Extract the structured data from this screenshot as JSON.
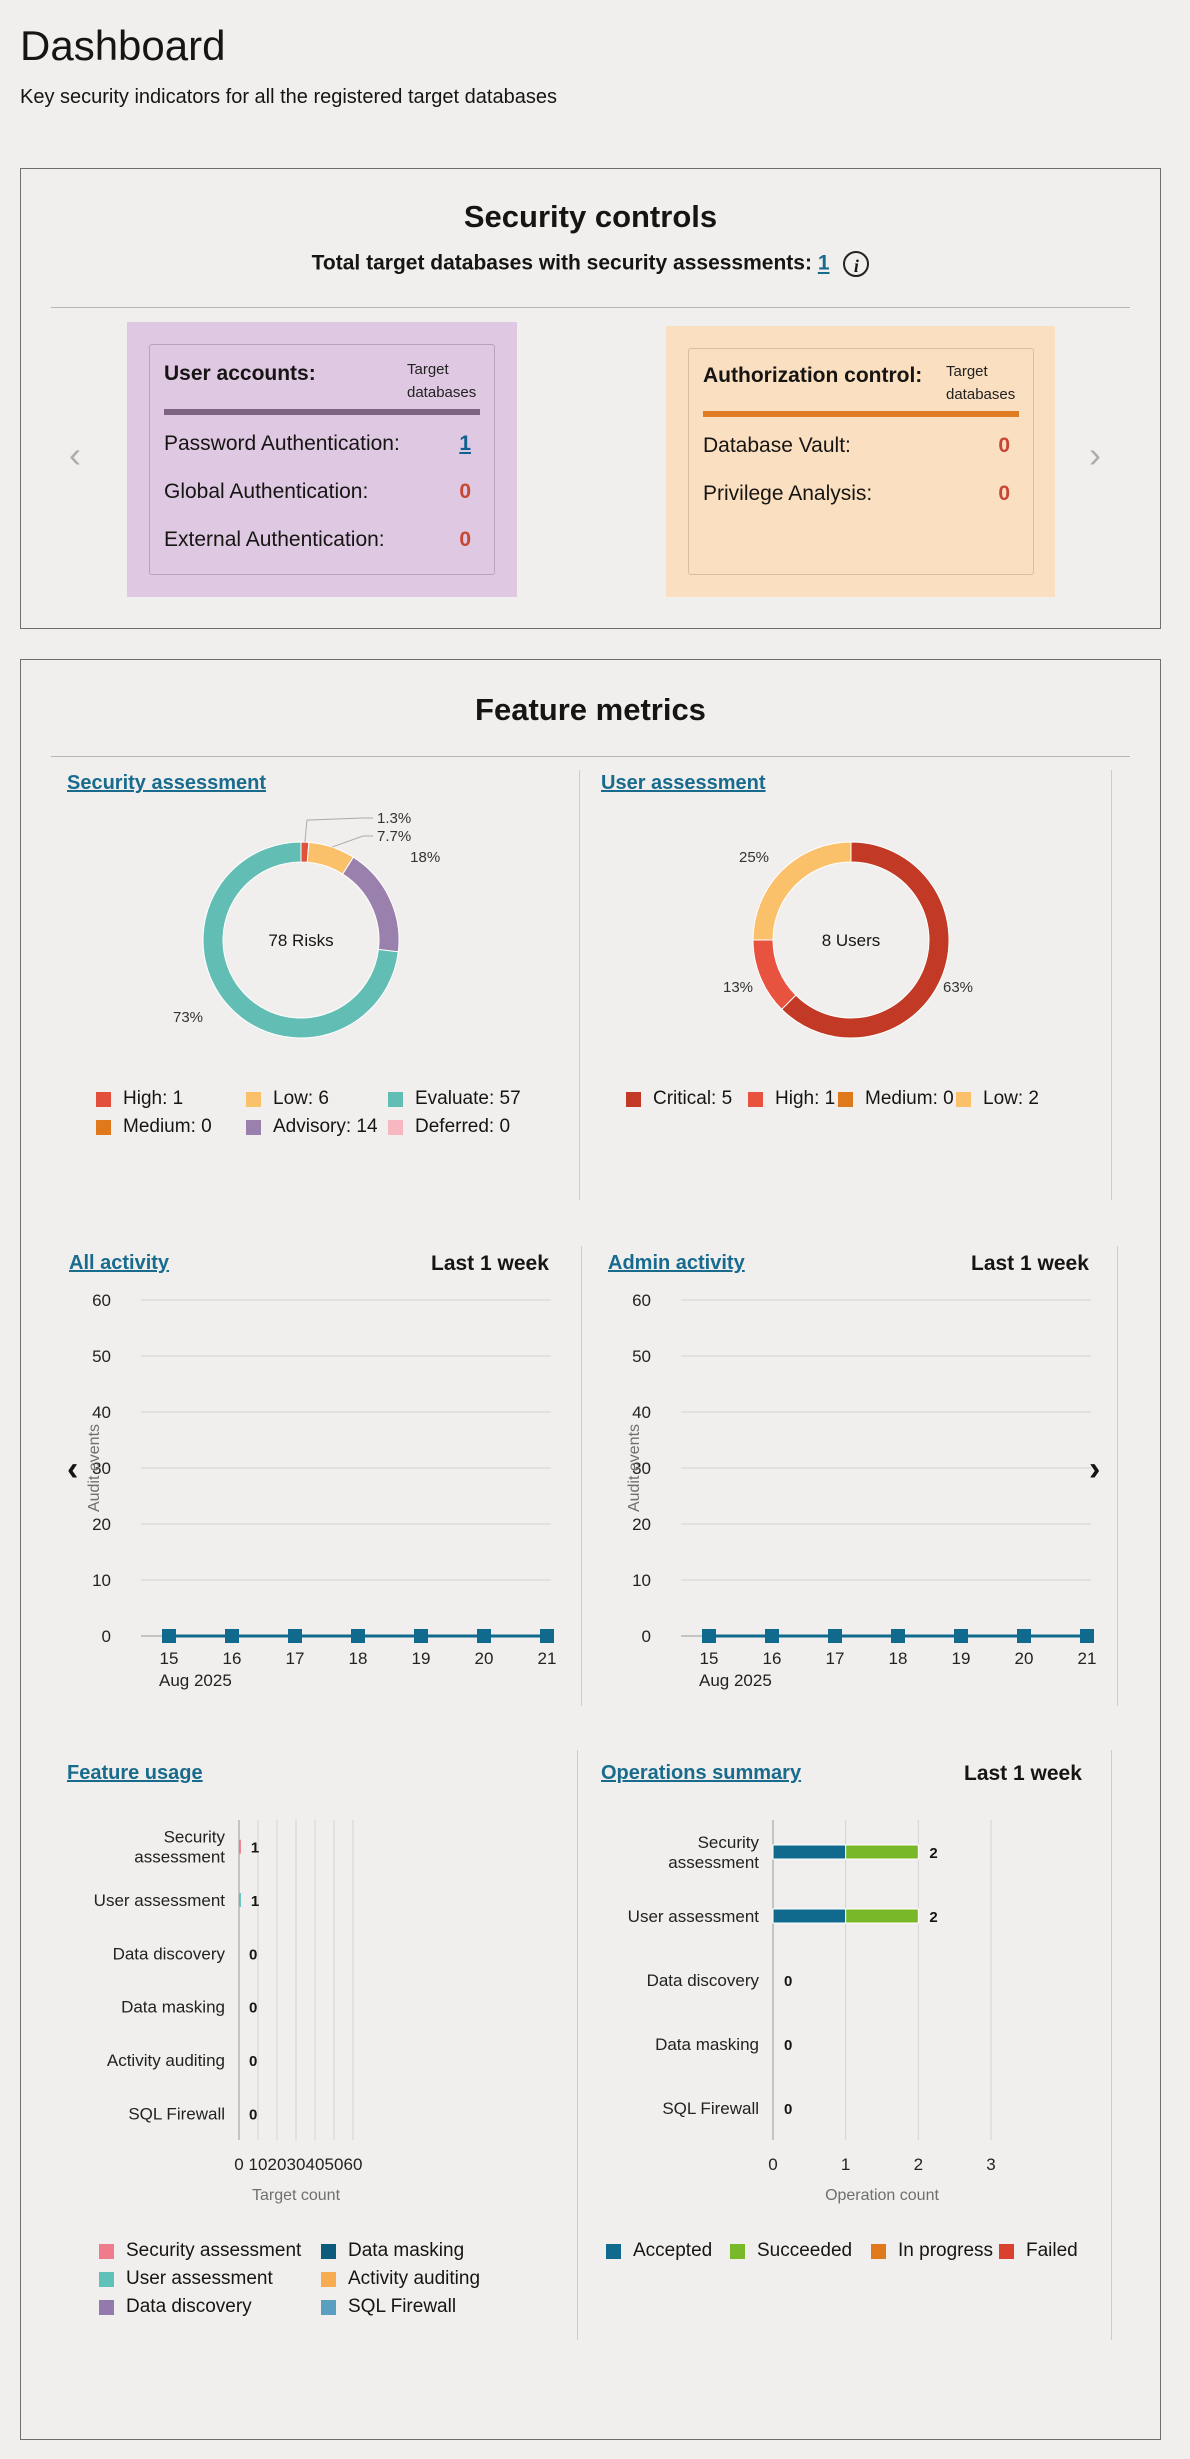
{
  "page": {
    "title": "Dashboard",
    "subtitle": "Key security indicators for all the registered target databases"
  },
  "security_controls": {
    "title": "Security controls",
    "total_label": "Total target databases with security assessments:",
    "total_value": "1",
    "info_icon": "info-icon",
    "prev_arrow": "‹",
    "next_arrow": "›",
    "cards": [
      {
        "title": "User accounts:",
        "column_header_1": "Target",
        "column_header_2": "databases",
        "bg_color": "#dfc8e2",
        "bar_color": "#7d6483",
        "rows": [
          {
            "label": "Password Authentication:",
            "value": "1"
          },
          {
            "label": "Global Authentication:",
            "value": "0"
          },
          {
            "label": "External Authentication:",
            "value": "0"
          }
        ]
      },
      {
        "title": "Authorization control:",
        "column_header_1": "Target",
        "column_header_2": "databases",
        "bg_color": "#fadfc0",
        "bar_color": "#e07d23",
        "rows": [
          {
            "label": "Database Vault:",
            "value": "0"
          },
          {
            "label": "Privilege Analysis:",
            "value": "0"
          }
        ]
      }
    ]
  },
  "feature_metrics": {
    "title": "Feature metrics",
    "security_assessment": {
      "link": "Security assessment",
      "center_label": "78 Risks",
      "slice_labels": [
        "1.3%",
        "7.7%",
        "18%",
        "73%"
      ],
      "legend": [
        {
          "label": "High: 1",
          "color": "#e24f3d"
        },
        {
          "label": "Low: 6",
          "color": "#fbc06a"
        },
        {
          "label": "Evaluate: 57",
          "color": "#62bdb5"
        },
        {
          "label": "Medium: 0",
          "color": "#e0781c"
        },
        {
          "label": "Advisory: 14",
          "color": "#9a80ad"
        },
        {
          "label": "Deferred: 0",
          "color": "#f6b7c1"
        }
      ]
    },
    "user_assessment": {
      "link": "User assessment",
      "center_label": "8 Users",
      "slice_labels": [
        "63%",
        "13%",
        "25%"
      ],
      "legend": [
        {
          "label": "Critical: 5",
          "color": "#c23a25"
        },
        {
          "label": "High: 1",
          "color": "#e8533f"
        },
        {
          "label": "Medium: 0",
          "color": "#e0781c"
        },
        {
          "label": "Low: 2",
          "color": "#fbc06a"
        }
      ]
    },
    "all_activity": {
      "link": "All activity",
      "period": "Last 1 week",
      "prev_arrow": "‹"
    },
    "admin_activity": {
      "link": "Admin activity",
      "period": "Last 1 week",
      "next_arrow": "›"
    },
    "feature_usage": {
      "link": "Feature usage",
      "legend": [
        {
          "label": "Security assessment",
          "color": "#ef7c8c"
        },
        {
          "label": "Data masking",
          "color": "#0d5b7c"
        },
        {
          "label": "User assessment",
          "color": "#5ec2b8"
        },
        {
          "label": "Activity auditing",
          "color": "#f7ac52"
        },
        {
          "label": "Data discovery",
          "color": "#937aad"
        },
        {
          "label": "SQL Firewall",
          "color": "#5a9ec0"
        }
      ]
    },
    "operations_summary": {
      "link": "Operations summary",
      "period": "Last 1 week",
      "legend": [
        {
          "label": "Accepted",
          "color": "#0f6a8e"
        },
        {
          "label": "Succeeded",
          "color": "#78b829"
        },
        {
          "label": "In progress",
          "color": "#e0781c"
        },
        {
          "label": "Failed",
          "color": "#d9402f"
        }
      ]
    }
  },
  "chart_data": [
    {
      "type": "pie",
      "name": "Security assessment",
      "categories": [
        "High",
        "Medium",
        "Low",
        "Advisory",
        "Evaluate",
        "Deferred"
      ],
      "values": [
        1,
        0,
        6,
        14,
        57,
        0
      ],
      "colors": [
        "#e24f3d",
        "#e0781c",
        "#fbc06a",
        "#9a80ad",
        "#62bdb5",
        "#f6b7c1"
      ],
      "donut": true
    },
    {
      "type": "pie",
      "name": "User assessment",
      "categories": [
        "Critical",
        "High",
        "Medium",
        "Low"
      ],
      "values": [
        5,
        1,
        0,
        2
      ],
      "colors": [
        "#c23a25",
        "#e8533f",
        "#e0781c",
        "#fbc06a"
      ],
      "donut": true
    },
    {
      "type": "line",
      "name": "All activity",
      "x": [
        "15",
        "16",
        "17",
        "18",
        "19",
        "20",
        "21"
      ],
      "x_sublabel": "Aug 2025",
      "values": [
        0,
        0,
        0,
        0,
        0,
        0,
        0
      ],
      "ylabel": "Audit events",
      "ylim": [
        0,
        60
      ],
      "yticks": [
        0,
        10,
        20,
        30,
        40,
        50,
        60
      ],
      "color": "#0f6a8e"
    },
    {
      "type": "line",
      "name": "Admin activity",
      "x": [
        "15",
        "16",
        "17",
        "18",
        "19",
        "20",
        "21"
      ],
      "x_sublabel": "Aug 2025",
      "values": [
        0,
        0,
        0,
        0,
        0,
        0,
        0
      ],
      "ylabel": "Audit events",
      "ylim": [
        0,
        60
      ],
      "yticks": [
        0,
        10,
        20,
        30,
        40,
        50,
        60
      ],
      "color": "#0f6a8e"
    },
    {
      "type": "bar",
      "orientation": "horizontal",
      "name": "Feature usage",
      "categories": [
        [
          "Security",
          "assessment"
        ],
        [
          "User assessment"
        ],
        [
          "Data discovery"
        ],
        [
          "Data masking"
        ],
        [
          "Activity auditing"
        ],
        [
          "SQL Firewall"
        ]
      ],
      "values": [
        1,
        1,
        0,
        0,
        0,
        0
      ],
      "colors": [
        "#ef7c8c",
        "#5ec2b8",
        "#937aad",
        "#0d5b7c",
        "#f7ac52",
        "#5a9ec0"
      ],
      "xlabel": "Target count",
      "xlim": [
        0,
        60
      ],
      "xticks": [
        0,
        10,
        20,
        30,
        40,
        50,
        60
      ]
    },
    {
      "type": "bar",
      "orientation": "horizontal",
      "stacked": true,
      "name": "Operations summary",
      "categories": [
        [
          "Security",
          "assessment"
        ],
        [
          "User assessment"
        ],
        [
          "Data discovery"
        ],
        [
          "Data masking"
        ],
        [
          "SQL Firewall"
        ]
      ],
      "series": [
        {
          "name": "Accepted",
          "values": [
            1,
            1,
            0,
            0,
            0
          ],
          "color": "#0f6a8e"
        },
        {
          "name": "Succeeded",
          "values": [
            1,
            1,
            0,
            0,
            0
          ],
          "color": "#78b829"
        },
        {
          "name": "In progress",
          "values": [
            0,
            0,
            0,
            0,
            0
          ],
          "color": "#e0781c"
        },
        {
          "name": "Failed",
          "values": [
            0,
            0,
            0,
            0,
            0
          ],
          "color": "#d9402f"
        }
      ],
      "totals": [
        2,
        2,
        0,
        0,
        0
      ],
      "xlabel": "Operation count",
      "xlim": [
        0,
        3
      ],
      "xticks": [
        0,
        1,
        2,
        3
      ]
    }
  ]
}
